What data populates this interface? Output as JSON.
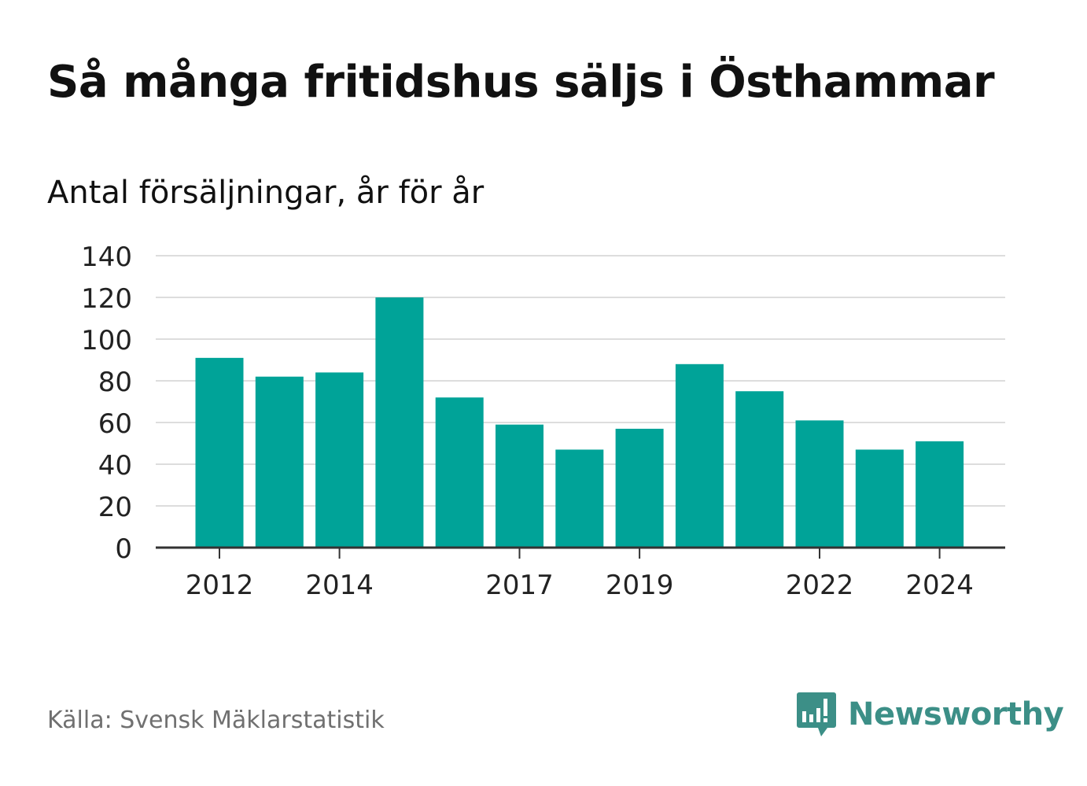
{
  "header": {
    "title": "Så många fritidshus säljs i Östhammar",
    "subtitle": "Antal försäljningar, år för år"
  },
  "footer": {
    "source": "Källa: Svensk Mäklarstatistik",
    "brand": "Newsworthy",
    "brand_color": "#3c8f87"
  },
  "chart_data": {
    "type": "bar",
    "categories": [
      "2012",
      "2013",
      "2014",
      "2015",
      "2016",
      "2017",
      "2018",
      "2019",
      "2020",
      "2021",
      "2022",
      "2023",
      "2024"
    ],
    "values": [
      91,
      82,
      84,
      120,
      72,
      59,
      47,
      57,
      88,
      75,
      61,
      47,
      51
    ],
    "x_tick_labels": [
      "2012",
      "2014",
      "2017",
      "2019",
      "2022",
      "2024"
    ],
    "y_ticks": [
      0,
      20,
      40,
      60,
      80,
      100,
      120,
      140
    ],
    "ylim": [
      0,
      140
    ],
    "grid": true,
    "bar_color": "#00a398",
    "xlabel": "",
    "ylabel": ""
  }
}
